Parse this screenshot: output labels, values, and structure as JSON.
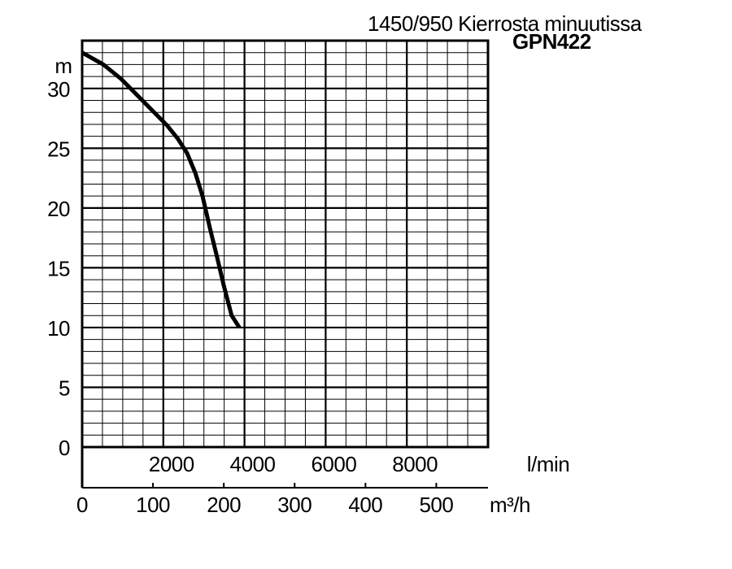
{
  "chart_data": {
    "type": "line",
    "title": "GPN422",
    "subtitle": "1450/950 Kierrosta minuutissa",
    "ylabel": "m",
    "ylim": [
      0,
      34
    ],
    "yticks": [
      0,
      5,
      10,
      15,
      20,
      25,
      30
    ],
    "grid": true,
    "x_axis_primary": {
      "label": "l/min",
      "ticks": [
        2000,
        4000,
        6000,
        8000
      ],
      "tick_labels": [
        "2000",
        "4000",
        "6000",
        "8000"
      ]
    },
    "x_axis_secondary": {
      "label": "m³/h",
      "ticks": [
        0,
        100,
        200,
        300,
        400,
        500
      ],
      "tick_labels": [
        "0",
        "100",
        "200",
        "300",
        "400",
        "500"
      ]
    },
    "xlim_m3h": [
      0,
      573
    ],
    "series": [
      {
        "x_m3h": [
          0,
          30,
          55,
          80,
          100,
          120,
          135,
          148,
          160,
          170,
          180,
          190,
          200,
          211,
          222
        ],
        "y_m": [
          33.0,
          32.0,
          30.8,
          29.3,
          28.1,
          26.9,
          25.8,
          24.6,
          22.9,
          21.0,
          18.4,
          16.0,
          13.5,
          11.0,
          10.0
        ]
      }
    ]
  }
}
